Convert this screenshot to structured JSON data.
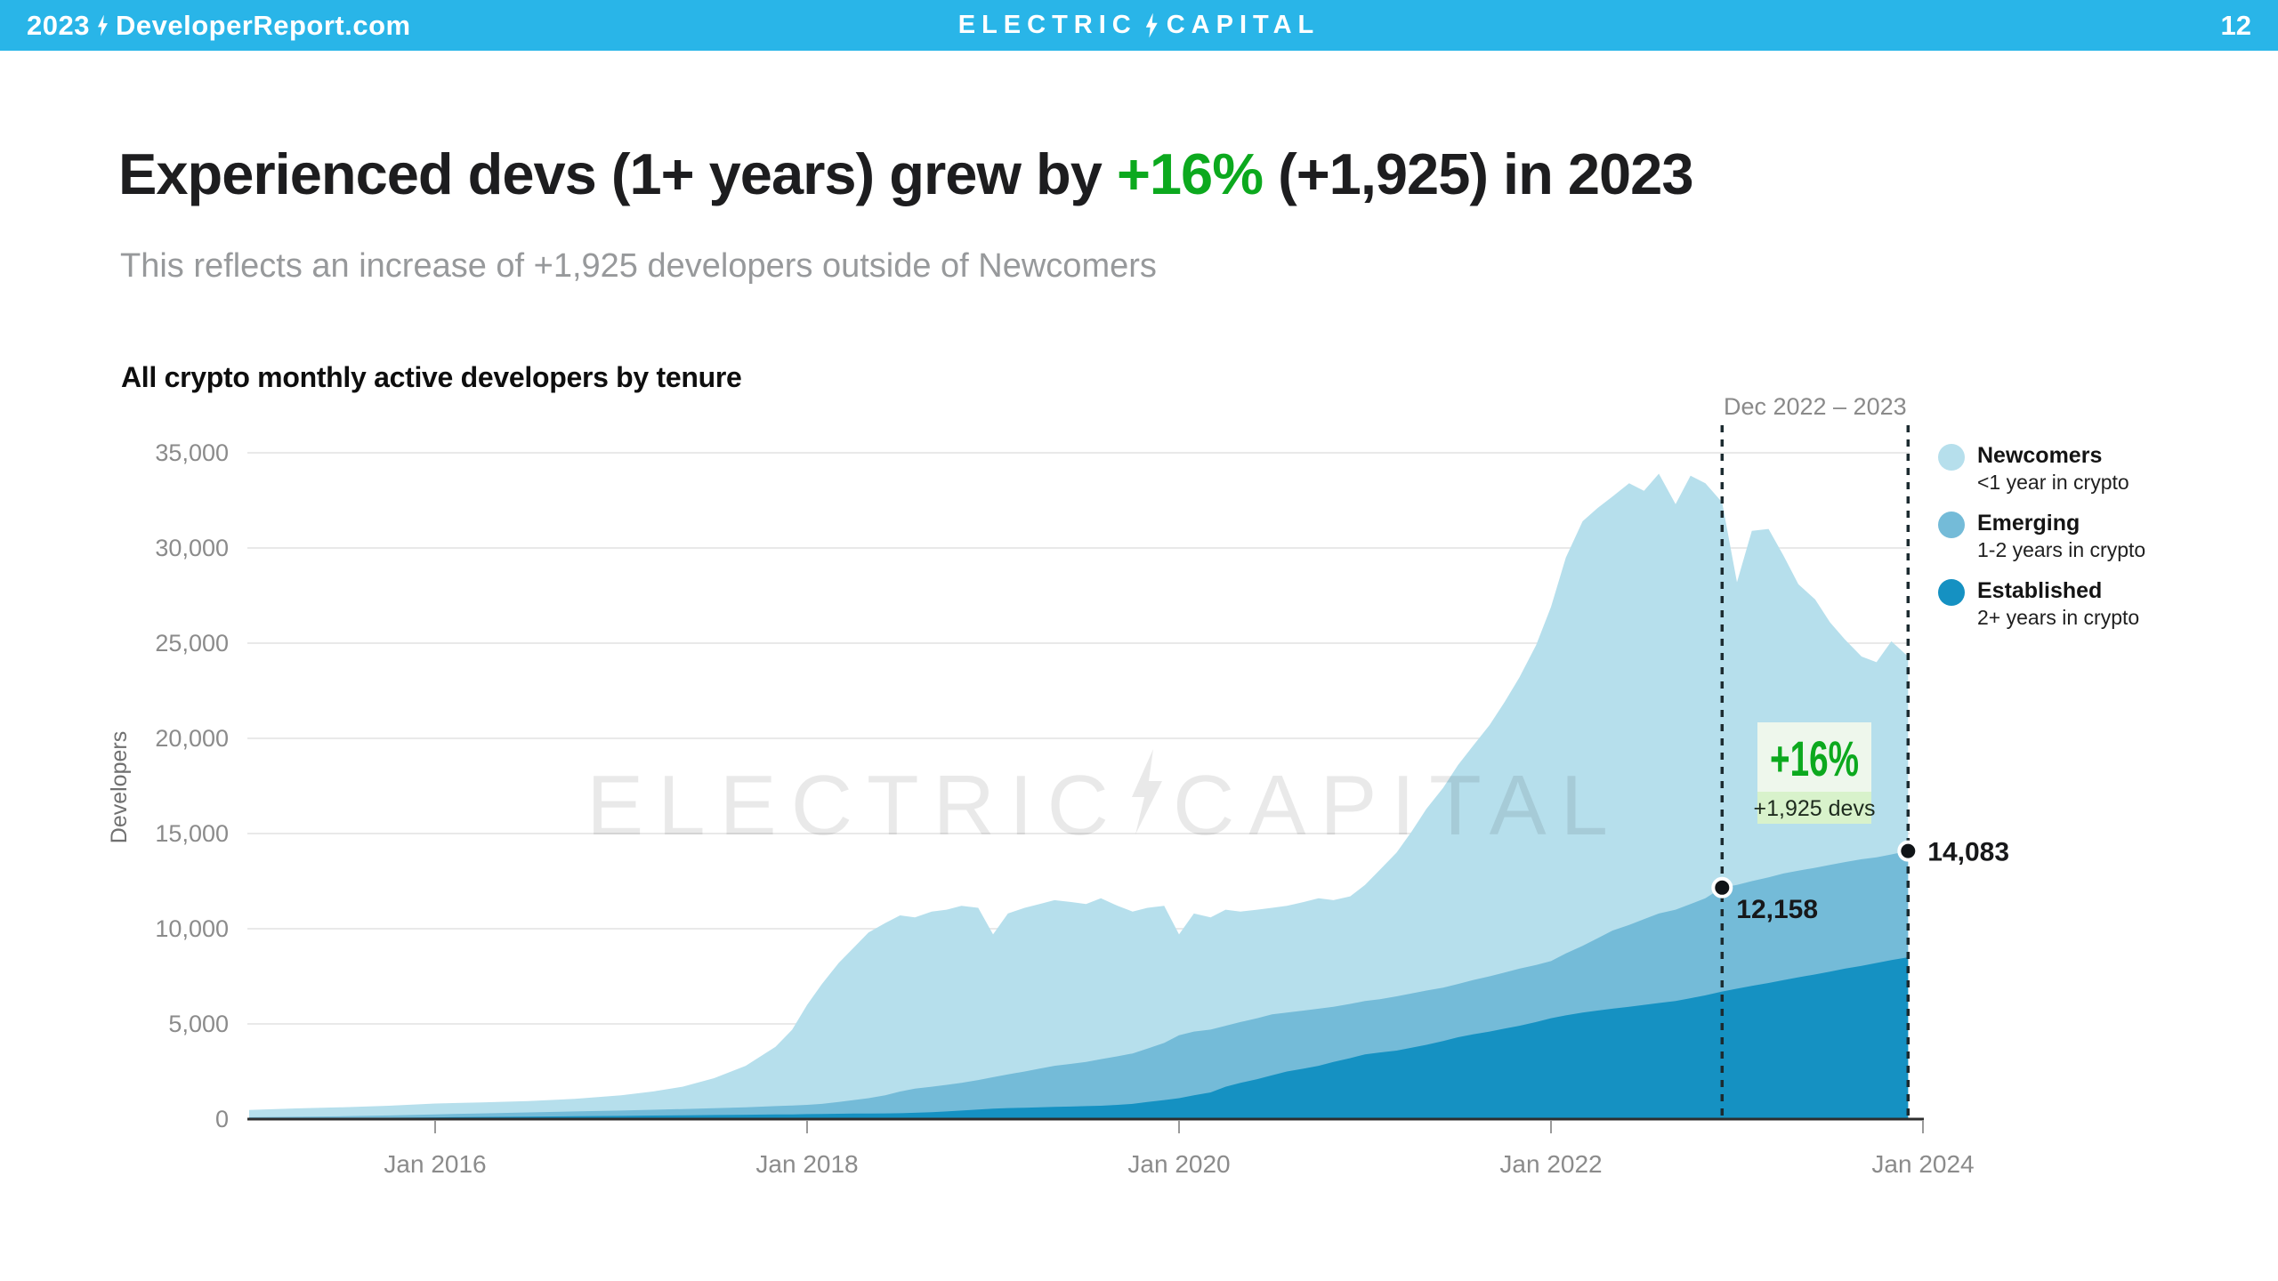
{
  "topbar": {
    "bg_color": "#29B5E8",
    "left_year": "2023",
    "left_site": "DeveloperReport.com",
    "logo_left": "ELECTRIC",
    "logo_right": "CAPITAL",
    "page_number": "12"
  },
  "headline": {
    "prefix": "Experienced devs (1+ years) grew by ",
    "highlight": "+16%",
    "highlight_color": "#0CA91E",
    "suffix": " (+1,925) in 2023"
  },
  "subtitle": "This reflects an increase of +1,925 developers outside of Newcomers",
  "chart_heading": "All crypto monthly active developers by tenure",
  "legend": {
    "items": [
      {
        "name": "Newcomers",
        "desc": "<1 year in crypto",
        "color": "#B6DFEC"
      },
      {
        "name": "Emerging",
        "desc": "1-2 years in crypto",
        "color": "#74BBD8"
      },
      {
        "name": "Established",
        "desc": "2+ years in crypto",
        "color": "#1591C2"
      }
    ]
  },
  "chart_data": {
    "type": "area",
    "stacked": true,
    "title": "All crypto monthly active developers by tenure",
    "ylabel": "Developers",
    "ylim": [
      0,
      35000
    ],
    "grid": true,
    "yticks": [
      {
        "label": "0",
        "value": 0
      },
      {
        "label": "5,000",
        "value": 5000
      },
      {
        "label": "10,000",
        "value": 10000
      },
      {
        "label": "15,000",
        "value": 15000
      },
      {
        "label": "20,000",
        "value": 20000
      },
      {
        "label": "25,000",
        "value": 25000
      },
      {
        "label": "30,000",
        "value": 30000
      },
      {
        "label": "35,000",
        "value": 35000
      }
    ],
    "xticks": [
      {
        "label": "Jan 2016",
        "year": 2016
      },
      {
        "label": "Jan 2018",
        "year": 2018
      },
      {
        "label": "Jan 2020",
        "year": 2020
      },
      {
        "label": "Jan 2022",
        "year": 2022
      },
      {
        "label": "Jan 2024",
        "year": 2024
      }
    ],
    "note": "cumulative_top values are the stacked top of each band (Established bottom, then Emerging, then Newcomers). Values estimated from pixels; Dec 2022 and Dec 2023 experienced totals are exact data labels.",
    "x_years": [
      2015.0,
      2015.25,
      2015.5,
      2015.75,
      2016.0,
      2016.25,
      2016.5,
      2016.75,
      2017.0,
      2017.17,
      2017.33,
      2017.5,
      2017.67,
      2017.83,
      2017.92,
      2018.0,
      2018.08,
      2018.17,
      2018.25,
      2018.33,
      2018.42,
      2018.5,
      2018.58,
      2018.67,
      2018.75,
      2018.83,
      2018.92,
      2019.0,
      2019.08,
      2019.17,
      2019.25,
      2019.33,
      2019.42,
      2019.5,
      2019.58,
      2019.67,
      2019.75,
      2019.83,
      2019.92,
      2020.0,
      2020.08,
      2020.17,
      2020.25,
      2020.33,
      2020.42,
      2020.5,
      2020.58,
      2020.67,
      2020.75,
      2020.83,
      2020.92,
      2021.0,
      2021.08,
      2021.17,
      2021.25,
      2021.33,
      2021.42,
      2021.5,
      2021.58,
      2021.67,
      2021.75,
      2021.83,
      2021.92,
      2022.0,
      2022.08,
      2022.17,
      2022.25,
      2022.33,
      2022.42,
      2022.5,
      2022.58,
      2022.67,
      2022.75,
      2022.83,
      2022.92,
      2023.0,
      2023.08,
      2023.17,
      2023.25,
      2023.33,
      2023.42,
      2023.5,
      2023.58,
      2023.67,
      2023.75,
      2023.83,
      2023.92
    ],
    "series": [
      {
        "name": "Established",
        "tenure": "2+ years in crypto",
        "color": "#1591C2",
        "cumulative_top": [
          40,
          45,
          55,
          70,
          90,
          110,
          130,
          150,
          170,
          185,
          200,
          215,
          230,
          245,
          250,
          260,
          270,
          280,
          290,
          295,
          300,
          310,
          330,
          360,
          400,
          450,
          500,
          550,
          580,
          600,
          620,
          640,
          660,
          680,
          700,
          750,
          800,
          900,
          1000,
          1100,
          1250,
          1400,
          1700,
          1900,
          2100,
          2300,
          2500,
          2650,
          2800,
          3000,
          3200,
          3400,
          3500,
          3600,
          3750,
          3900,
          4100,
          4300,
          4450,
          4600,
          4750,
          4900,
          5100,
          5300,
          5450,
          5600,
          5700,
          5800,
          5900,
          6000,
          6100,
          6200,
          6350,
          6500,
          6700,
          6850,
          7000,
          7150,
          7300,
          7450,
          7600,
          7750,
          7900,
          8050,
          8200,
          8350,
          8500
        ]
      },
      {
        "name": "Emerging",
        "tenure": "1-2 years in crypto",
        "color": "#74BBD8",
        "cumulative_top": [
          100,
          120,
          150,
          190,
          250,
          300,
          350,
          400,
          450,
          490,
          530,
          570,
          620,
          680,
          710,
          750,
          800,
          900,
          1000,
          1100,
          1250,
          1450,
          1600,
          1700,
          1800,
          1900,
          2050,
          2200,
          2350,
          2500,
          2650,
          2800,
          2900,
          3000,
          3150,
          3300,
          3450,
          3700,
          4000,
          4400,
          4600,
          4700,
          4900,
          5100,
          5300,
          5500,
          5600,
          5700,
          5800,
          5900,
          6050,
          6200,
          6300,
          6450,
          6600,
          6750,
          6900,
          7100,
          7300,
          7500,
          7700,
          7900,
          8100,
          8300,
          8700,
          9100,
          9500,
          9900,
          10200,
          10500,
          10800,
          11000,
          11300,
          11600,
          12158,
          12300,
          12500,
          12700,
          12900,
          13050,
          13200,
          13350,
          13500,
          13650,
          13750,
          13900,
          14083
        ]
      },
      {
        "name": "Newcomers",
        "tenure": "<1 year in crypto",
        "color": "#B6DFEC",
        "cumulative_top": [
          480,
          560,
          620,
          700,
          820,
          880,
          950,
          1060,
          1250,
          1450,
          1700,
          2150,
          2800,
          3800,
          4700,
          6000,
          7100,
          8200,
          9000,
          9800,
          10300,
          10700,
          10600,
          10900,
          11000,
          11200,
          11100,
          9700,
          10800,
          11100,
          11300,
          11500,
          11400,
          11300,
          11600,
          11200,
          10900,
          11100,
          11200,
          9700,
          10800,
          10600,
          11000,
          10900,
          11000,
          11100,
          11200,
          11400,
          11600,
          11500,
          11700,
          12300,
          13100,
          14000,
          15100,
          16300,
          17400,
          18600,
          19600,
          20700,
          21900,
          23200,
          24900,
          26900,
          29500,
          31400,
          32100,
          32700,
          33400,
          33000,
          33900,
          32300,
          33800,
          33400,
          32400,
          28200,
          30900,
          31000,
          29600,
          28100,
          27300,
          26100,
          25200,
          24300,
          24000,
          25100,
          24300
        ]
      }
    ],
    "annotations": {
      "range_label": "Dec 2022 – 2023",
      "start": {
        "x": 2022.92,
        "value": 12158,
        "label": "12,158"
      },
      "end": {
        "x": 2023.92,
        "value": 14083,
        "label": "14,083"
      },
      "badge": {
        "percent": "+16%",
        "subtext": "+1,925 devs",
        "percent_color": "#0CA91E",
        "bg_top": "#EEF7EC",
        "bg_bottom": "#D8F2CB"
      }
    },
    "watermark": {
      "left": "ELECTRIC",
      "right": "CAPITAL"
    }
  }
}
